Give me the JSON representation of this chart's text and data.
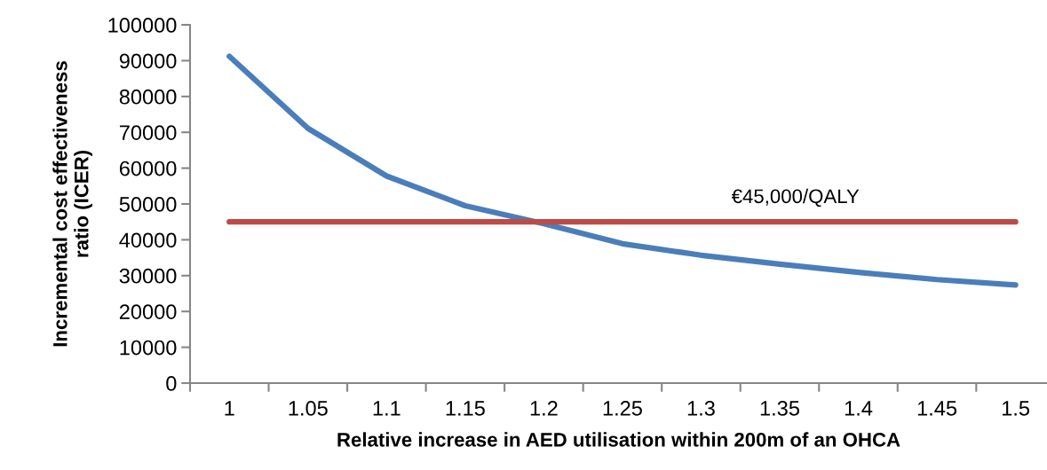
{
  "chart_data": {
    "type": "line",
    "xlabel": "Relative increase in AED utilisation within 200m of an OHCA",
    "ylabel": "Incremental cost effectiveness ratio (ICER)",
    "series": [
      {
        "color": "#4a7ebb",
        "x": [
          1,
          1.05,
          1.1,
          1.15,
          1.2,
          1.25,
          1.3,
          1.35,
          1.4,
          1.45,
          1.5
        ],
        "values": [
          91200,
          71100,
          57800,
          49500,
          44500,
          38900,
          35700,
          33200,
          30900,
          28900,
          27400
        ]
      },
      {
        "color": "#be4b48",
        "x": [
          1,
          1.5
        ],
        "values": [
          45000,
          45000
        ]
      }
    ],
    "annotations": [
      {
        "text": "€45,000/QALY",
        "x": 1.36,
        "y": 45000
      }
    ],
    "xlim": [
      0.975,
      1.52
    ],
    "xticks": [
      {
        "value": 0.975,
        "label": null
      },
      1,
      {
        "value": 1.025,
        "label": null
      },
      1.05,
      {
        "value": 1.075,
        "label": null
      },
      1.1,
      {
        "value": 1.125,
        "label": null
      },
      1.15,
      {
        "value": 1.175,
        "label": null
      },
      1.2,
      {
        "value": 1.225,
        "label": null
      },
      1.25,
      {
        "value": 1.275,
        "label": null
      },
      1.3,
      {
        "value": 1.325,
        "label": null
      },
      1.35,
      {
        "value": 1.375,
        "label": null
      },
      1.4,
      {
        "value": 1.425,
        "label": null
      },
      1.45,
      {
        "value": 1.475,
        "label": null
      },
      1.5
    ],
    "ylim": [
      0,
      100000
    ],
    "yticks": [
      0,
      10000,
      20000,
      30000,
      40000,
      50000,
      60000,
      70000,
      80000,
      90000,
      100000
    ],
    "grid": false,
    "legend": false,
    "marker": "none",
    "line_style": "solid"
  }
}
